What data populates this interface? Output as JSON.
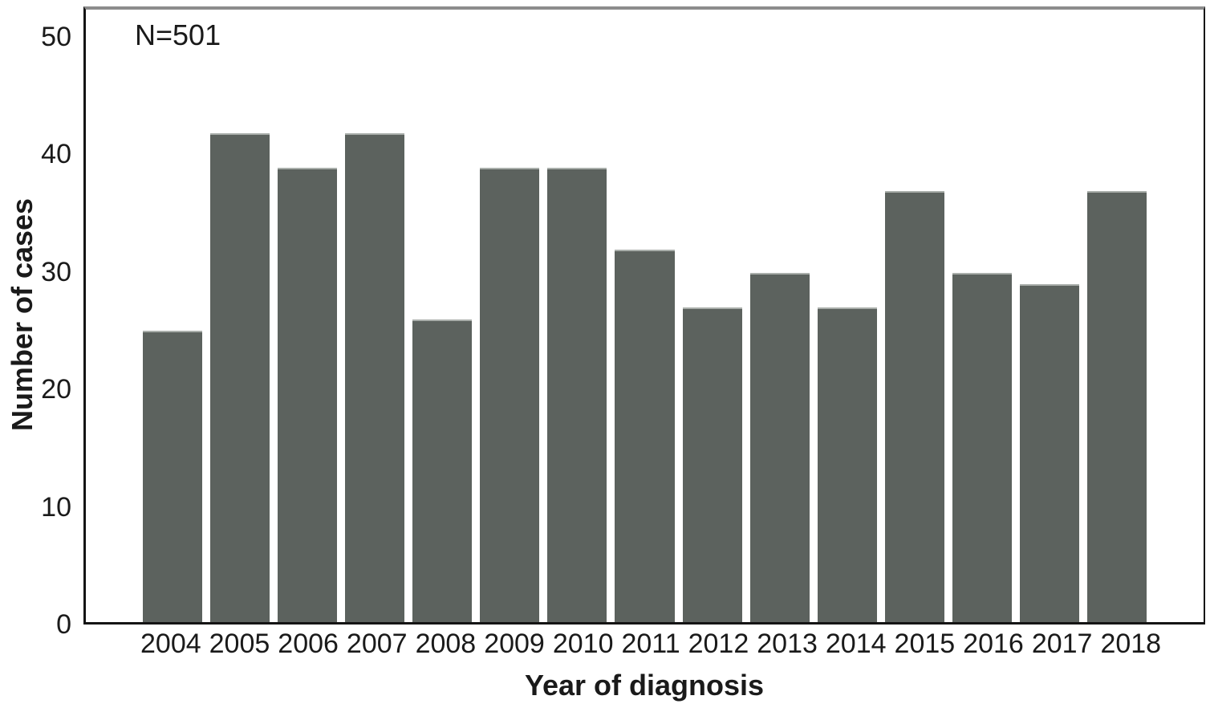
{
  "chart_data": {
    "type": "bar",
    "title": "",
    "annotation": "N=501",
    "categories": [
      "2004",
      "2005",
      "2006",
      "2007",
      "2008",
      "2009",
      "2010",
      "2011",
      "2012",
      "2013",
      "2014",
      "2015",
      "2016",
      "2017",
      "2018"
    ],
    "values": [
      25,
      42,
      39,
      42,
      26,
      39,
      39,
      32,
      27,
      30,
      27,
      37,
      30,
      29,
      37
    ],
    "total_n": 501,
    "xlabel": "Year of diagnosis",
    "ylabel": "Number of cases",
    "ytick_values": [
      0,
      10,
      20,
      30,
      40,
      50
    ],
    "ylim": [
      0,
      52.6
    ],
    "grid": false,
    "legend": false,
    "colors": {
      "bar_fill": "#5c625e",
      "bar_top_edge": "#a9aeaa",
      "frame_dark": "#141414",
      "frame_top": "#8c8c8c",
      "text": "#1a1a1a",
      "background": "#ffffff"
    }
  }
}
